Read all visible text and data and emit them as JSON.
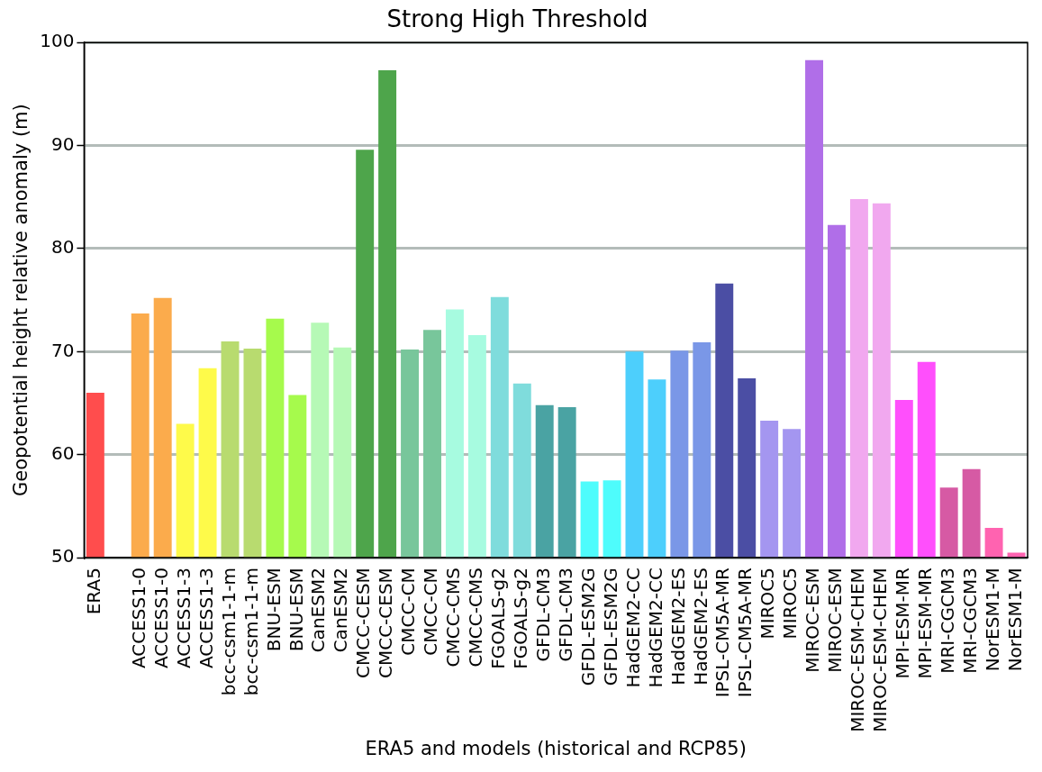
{
  "chart_data": {
    "type": "bar",
    "title": "Strong High Threshold",
    "xlabel": "ERA5 and models (historical and RCP85)",
    "ylabel": "Geopotential height relative anomaly (m)",
    "categories": [
      "ERA5",
      null,
      "ACCESS1-0",
      "ACCESS1-0",
      "ACCESS1-3",
      "ACCESS1-3",
      "bcc-csm1-1-m",
      "bcc-csm1-1-m",
      "BNU-ESM",
      "BNU-ESM",
      "CanESM2",
      "CanESM2",
      "CMCC-CESM",
      "CMCC-CESM",
      "CMCC-CM",
      "CMCC-CM",
      "CMCC-CMS",
      "CMCC-CMS",
      "FGOALS-g2",
      "FGOALS-g2",
      "GFDL-CM3",
      "GFDL-CM3",
      "GFDL-ESM2G",
      "GFDL-ESM2G",
      "HadGEM2-CC",
      "HadGEM2-CC",
      "HadGEM2-ES",
      "HadGEM2-ES",
      "IPSL-CM5A-MR",
      "IPSL-CM5A-MR",
      "MIROC5",
      "MIROC5",
      "MIROC-ESM",
      "MIROC-ESM",
      "MIROC-ESM-CHEM",
      "MIROC-ESM-CHEM",
      "MPI-ESM-MR",
      "MPI-ESM-MR",
      "MRI-CGCM3",
      "MRI-CGCM3",
      "NorESM1-M",
      "NorESM1-M"
    ],
    "values": [
      66.0,
      null,
      73.7,
      75.2,
      63.0,
      68.4,
      71.0,
      70.3,
      73.2,
      65.8,
      72.8,
      70.4,
      89.6,
      97.3,
      70.2,
      72.1,
      74.1,
      71.6,
      75.3,
      66.9,
      64.8,
      64.6,
      57.4,
      57.5,
      70.0,
      67.3,
      70.1,
      70.9,
      76.6,
      67.4,
      63.3,
      62.5,
      98.3,
      82.3,
      84.8,
      84.4,
      65.3,
      69.0,
      56.8,
      58.6,
      52.9,
      50.5
    ],
    "colors": [
      "#ff4d4d",
      "#ffffff",
      "#fbab4c",
      "#fbab4c",
      "#fefa4a",
      "#fefa4a",
      "#b8db6f",
      "#b8db6f",
      "#a6fa4c",
      "#a6fa4c",
      "#b6f9b6",
      "#b6f9b6",
      "#4ea54b",
      "#4ea54b",
      "#78c69b",
      "#78c69b",
      "#a7fbe0",
      "#a7fbe0",
      "#7fdcdc",
      "#7fdcdc",
      "#4aa3a3",
      "#4aa3a3",
      "#4efcfc",
      "#4efcfc",
      "#4dcffc",
      "#4dcffc",
      "#7a97e7",
      "#7a97e7",
      "#4b4ea4",
      "#4b4ea4",
      "#a496f0",
      "#a496f0",
      "#b06ee8",
      "#b06ee8",
      "#f1a8ef",
      "#f1a8ef",
      "#ff4ffc",
      "#ff4ffc",
      "#d65aa4",
      "#d65aa4",
      "#ff63b0",
      "#ff63b0"
    ],
    "ylim": [
      50,
      100
    ],
    "yticks": [
      50,
      60,
      70,
      80,
      90,
      100
    ],
    "grid": "y",
    "legend": false
  }
}
